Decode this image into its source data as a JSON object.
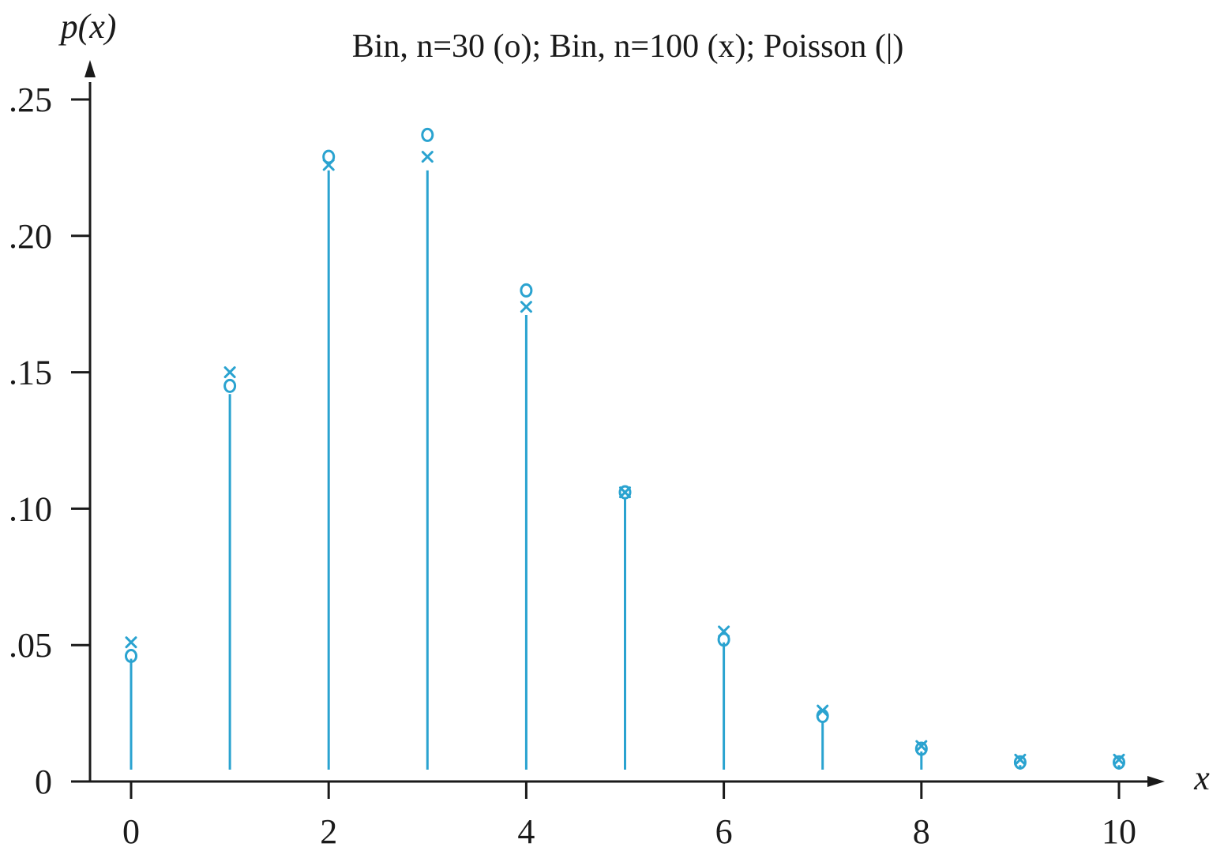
{
  "chart_data": {
    "type": "scatter",
    "title": "Bin, n=30 (o); Bin, n=100 (x); Poisson (|)",
    "xlabel": "x",
    "ylabel": "p(x)",
    "x": [
      0,
      1,
      2,
      3,
      4,
      5,
      6,
      7,
      8,
      9,
      10
    ],
    "xlim": [
      -0.3,
      10.5
    ],
    "ylim": [
      0,
      0.25
    ],
    "xticks": [
      0,
      2,
      4,
      6,
      8,
      10
    ],
    "xtick_labels": [
      "0",
      "2",
      "4",
      "6",
      "8",
      "10"
    ],
    "yticks": [
      0,
      0.05,
      0.1,
      0.15,
      0.2,
      0.25
    ],
    "ytick_labels": [
      "0",
      ".05",
      ".10",
      ".15",
      ".20",
      ".25"
    ],
    "grid": false,
    "series": [
      {
        "marker": "o",
        "color": "#2aa3d0",
        "values": [
          0.046,
          0.145,
          0.229,
          0.237,
          0.18,
          0.106,
          0.052,
          0.024,
          0.012,
          0.007,
          0.007
        ]
      },
      {
        "marker": "x",
        "color": "#2aa3d0",
        "values": [
          0.051,
          0.15,
          0.226,
          0.229,
          0.174,
          0.106,
          0.055,
          0.026,
          0.013,
          0.008,
          0.008
        ]
      },
      {
        "marker": "|",
        "color": "#2aa3d0",
        "values": [
          0.045,
          0.142,
          0.224,
          0.224,
          0.171,
          0.104,
          0.051,
          0.022,
          0.011,
          0.006,
          0.006
        ]
      }
    ]
  }
}
